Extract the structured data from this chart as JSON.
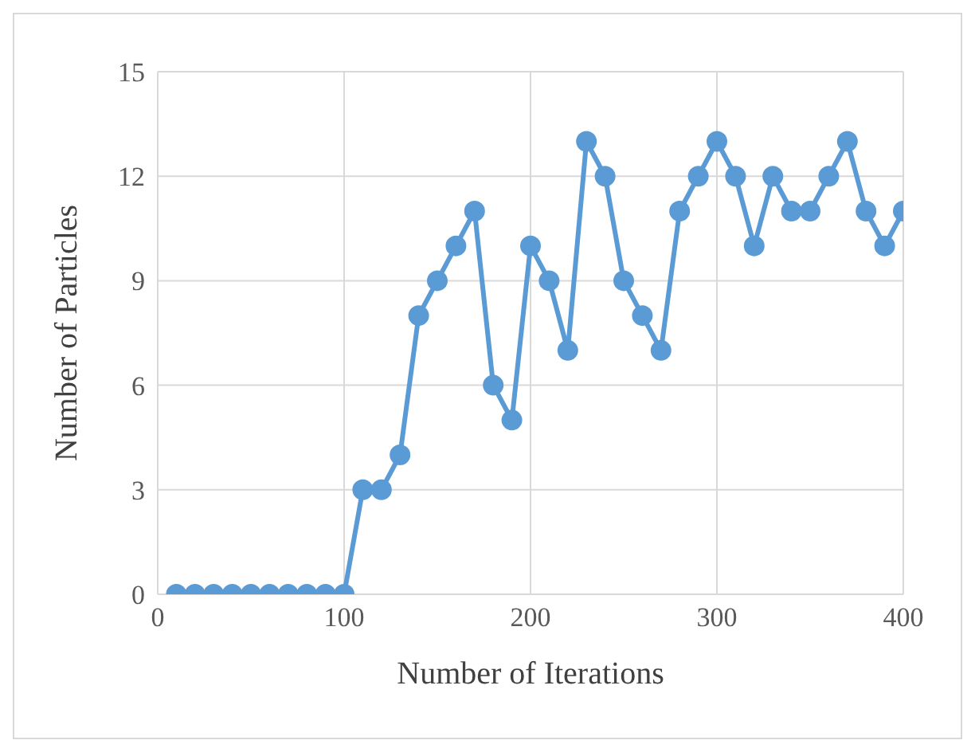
{
  "chart_data": {
    "type": "line",
    "xlabel": "Number of Iterations",
    "ylabel": "Number of Particles",
    "x": [
      10,
      20,
      30,
      40,
      50,
      60,
      70,
      80,
      90,
      100,
      110,
      120,
      130,
      140,
      150,
      160,
      170,
      180,
      190,
      200,
      210,
      220,
      230,
      240,
      250,
      260,
      270,
      280,
      290,
      300,
      310,
      320,
      330,
      340,
      350,
      360,
      370,
      380,
      390,
      400
    ],
    "series": [
      {
        "color": "#5b9bd5",
        "values": [
          0,
          0,
          0,
          0,
          0,
          0,
          0,
          0,
          0,
          0,
          3,
          3,
          4,
          8,
          9,
          10,
          11,
          6,
          5,
          10,
          9,
          7,
          13,
          12,
          9,
          8,
          7,
          11,
          12,
          13,
          12,
          10,
          12,
          11,
          11,
          12,
          13,
          11,
          10,
          11
        ]
      }
    ],
    "xlim": [
      0,
      400
    ],
    "xticks": [
      0,
      100,
      200,
      300,
      400
    ],
    "ylim": [
      0,
      15
    ],
    "yticks": [
      0,
      3,
      6,
      9,
      12,
      15
    ],
    "grid": true,
    "marker": "circle",
    "line_style": "solid"
  }
}
